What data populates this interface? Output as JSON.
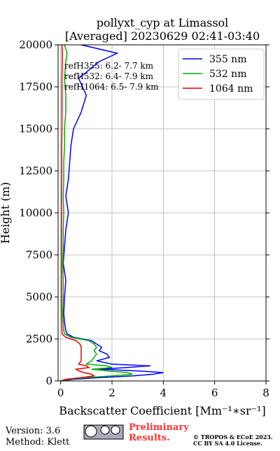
{
  "chart_data": {
    "type": "line",
    "title": "pollyxt_cyp at Limassol",
    "subtitle": "[Averaged] 20230629 02:41-03:40",
    "x_label": "Backscatter Coefficient [Mm⁻¹∗sr⁻¹]",
    "y_label": "Height (m)",
    "heights": [
      0,
      100,
      200,
      300,
      400,
      500,
      600,
      700,
      800,
      900,
      1000,
      1200,
      1400,
      1600,
      1800,
      2000,
      2200,
      2400,
      2600,
      2800,
      3000,
      3500,
      4000,
      5000,
      6000,
      7000,
      8000,
      9000,
      10000,
      11000,
      12000,
      13000,
      14000,
      15000,
      16000,
      17000,
      18000,
      19000,
      19500,
      20000
    ],
    "series": [
      {
        "name": "355 nm",
        "color": "#0000ff",
        "values": [
          0,
          0.5,
          1.5,
          2.8,
          3.6,
          4.0,
          3.0,
          1.5,
          2.6,
          3.5,
          2.0,
          1.4,
          1.9,
          1.8,
          1.5,
          1.6,
          1.4,
          1.2,
          0.5,
          0.25,
          0.2,
          0.15,
          0.12,
          0.15,
          0.2,
          0.1,
          0.15,
          0.2,
          0.3,
          0.2,
          0.3,
          0.35,
          0.4,
          0.5,
          0.8,
          1.0,
          0.7,
          1.5,
          2.2,
          0.8
        ]
      },
      {
        "name": "532 nm",
        "color": "#00b000",
        "values": [
          0,
          0.3,
          1.0,
          2.0,
          2.8,
          2.6,
          1.8,
          1.2,
          2.0,
          1.8,
          1.0,
          1.2,
          1.3,
          1.4,
          1.3,
          1.4,
          1.3,
          1.1,
          0.4,
          0.15,
          0.12,
          0.1,
          0.08,
          0.1,
          0.1,
          0.08,
          0.1,
          0.1,
          0.12,
          0.1,
          0.12,
          0.12,
          0.15,
          0.15,
          0.2,
          0.2,
          0.15,
          0.2,
          0.25,
          0.15
        ]
      },
      {
        "name": "1064 nm",
        "color": "#e00000",
        "values": [
          0,
          0.2,
          0.8,
          1.3,
          1.2,
          0.9,
          0.7,
          0.6,
          1.1,
          1.0,
          0.7,
          0.8,
          0.8,
          0.8,
          0.8,
          0.8,
          0.75,
          0.6,
          0.2,
          0.05,
          0.05,
          0.04,
          0.03,
          0.03,
          0.03,
          0.03,
          0.03,
          0.03,
          0.04,
          0.03,
          0.04,
          0.04,
          0.04,
          0.05,
          0.05,
          0.05,
          0.05,
          0.06,
          0.06,
          0.05
        ]
      }
    ],
    "xlim": [
      -0.1,
      8
    ],
    "xticks": [
      0,
      2,
      4,
      6,
      8
    ],
    "ylim": [
      0,
      20000
    ],
    "yticks": [
      0,
      2500,
      5000,
      7500,
      10000,
      12500,
      15000,
      17500,
      20000
    ],
    "grid": true,
    "legend": "upper right",
    "annotations": [
      "refH355:  6.2- 7.7 km",
      "refH532:  6.4- 7.9 km",
      "refH1064:  6.5- 7.9 km"
    ],
    "footer": {
      "version": "Version: 3.6",
      "method": "Method: Klett",
      "preliminary": "Preliminary Results.",
      "copyright": "© TROPOS & ECoE 2023.",
      "license": "CC BY SA 4.0 License."
    }
  }
}
